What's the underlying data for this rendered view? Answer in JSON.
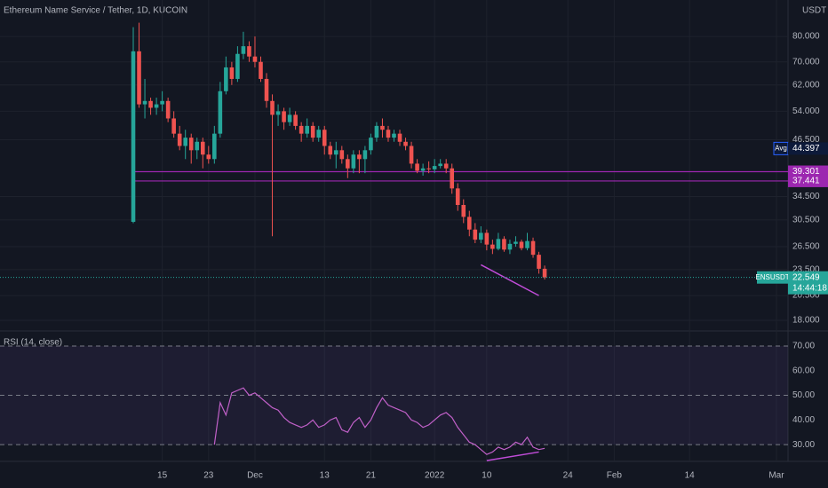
{
  "chart_data": [
    {
      "type": "candlestick",
      "title": "Ethereum Name Service / Tether, 1D, KUCOIN",
      "currency": "USDT",
      "symbol": "ENSUSDT",
      "last": 22.549,
      "countdown": "14:44:18",
      "avg": {
        "label": "Avg",
        "value": 44.397
      },
      "levels": [
        {
          "value": 39.301,
          "color": "#9c27b0"
        },
        {
          "value": 37.441,
          "color": "#9c27b0"
        }
      ],
      "trendline": {
        "color": "#c04cd8",
        "x": [
          "2022-01-09",
          "2022-01-19"
        ],
        "values": [
          24.1,
          20.5
        ]
      },
      "log_scale": true,
      "grid": true,
      "up_color": "#26a69a",
      "down_color": "#ef5350",
      "ylim": [
        17.1,
        96.9
      ],
      "yticks": [
        {
          "value": 80,
          "label": "80.000"
        },
        {
          "value": 70,
          "label": "70.000"
        },
        {
          "value": 62,
          "label": "62.000"
        },
        {
          "value": 54,
          "label": "54.000"
        },
        {
          "value": 46.5,
          "label": "46.500"
        },
        {
          "value": 34.5,
          "label": "34.500"
        },
        {
          "value": 30.5,
          "label": "30.500"
        },
        {
          "value": 26.5,
          "label": "26.500"
        },
        {
          "value": 23.5,
          "label": "23.500"
        },
        {
          "value": 20.5,
          "label": "20.500"
        },
        {
          "value": 18,
          "label": "18.000"
        }
      ],
      "xlim": [
        "2021-10-18",
        "2022-03-03"
      ],
      "xticks": [
        {
          "value": "2021-11-15",
          "label": "15"
        },
        {
          "value": "2021-11-23",
          "label": "23"
        },
        {
          "value": "2021-12-01",
          "label": "Dec"
        },
        {
          "value": "2021-12-13",
          "label": "13"
        },
        {
          "value": "2021-12-21",
          "label": "21"
        },
        {
          "value": "2022-01-01",
          "label": "2022"
        },
        {
          "value": "2022-01-10",
          "label": "10"
        },
        {
          "value": "2022-01-24",
          "label": "24"
        },
        {
          "value": "2022-02-01",
          "label": "Feb"
        },
        {
          "value": "2022-02-14",
          "label": "14"
        },
        {
          "value": "2022-03-01",
          "label": "Mar"
        }
      ],
      "x": [
        "2021-11-10",
        "2021-11-11",
        "2021-11-12",
        "2021-11-13",
        "2021-11-14",
        "2021-11-15",
        "2021-11-16",
        "2021-11-17",
        "2021-11-18",
        "2021-11-19",
        "2021-11-20",
        "2021-11-21",
        "2021-11-22",
        "2021-11-23",
        "2021-11-24",
        "2021-11-25",
        "2021-11-26",
        "2021-11-27",
        "2021-11-28",
        "2021-11-29",
        "2021-11-30",
        "2021-12-01",
        "2021-12-02",
        "2021-12-03",
        "2021-12-04",
        "2021-12-05",
        "2021-12-06",
        "2021-12-07",
        "2021-12-08",
        "2021-12-09",
        "2021-12-10",
        "2021-12-11",
        "2021-12-12",
        "2021-12-13",
        "2021-12-14",
        "2021-12-15",
        "2021-12-16",
        "2021-12-17",
        "2021-12-18",
        "2021-12-19",
        "2021-12-20",
        "2021-12-21",
        "2021-12-22",
        "2021-12-23",
        "2021-12-24",
        "2021-12-25",
        "2021-12-26",
        "2021-12-27",
        "2021-12-28",
        "2021-12-29",
        "2021-12-30",
        "2021-12-31",
        "2022-01-01",
        "2022-01-02",
        "2022-01-03",
        "2022-01-04",
        "2022-01-05",
        "2022-01-06",
        "2022-01-07",
        "2022-01-08",
        "2022-01-09",
        "2022-01-10",
        "2022-01-11",
        "2022-01-12",
        "2022-01-13",
        "2022-01-14",
        "2022-01-15",
        "2022-01-16",
        "2022-01-17",
        "2022-01-18",
        "2022-01-19",
        "2022-01-20"
      ],
      "open": [
        30.2,
        74,
        56,
        57,
        55,
        56,
        57,
        52,
        48,
        45,
        47,
        44,
        46,
        43,
        42,
        48,
        60,
        68,
        64,
        73,
        76,
        72,
        70,
        64,
        57,
        53,
        54,
        51,
        53,
        50,
        48,
        50,
        47,
        49,
        45,
        43,
        44,
        42,
        40,
        43,
        42,
        44,
        47,
        50,
        49,
        47,
        48,
        46,
        45,
        41,
        39.5,
        40,
        39.8,
        40.5,
        41,
        40,
        36,
        33,
        31,
        29,
        27.5,
        28.5,
        26.8,
        26.2,
        27.6,
        26.1,
        26.9,
        27.2,
        26.3,
        27.3,
        25.4,
        23.6
      ],
      "high": [
        84,
        86,
        64,
        58,
        58,
        60,
        58,
        54,
        50,
        49,
        48,
        47,
        47,
        45,
        50,
        63,
        72,
        70,
        76,
        82,
        78,
        80,
        72,
        66,
        59,
        56,
        55,
        55,
        54,
        51,
        52,
        51,
        50,
        50,
        46,
        46,
        45,
        43,
        44,
        44,
        45,
        48,
        51,
        52,
        50,
        49,
        49,
        47,
        46,
        42,
        41,
        41.5,
        42,
        42,
        42,
        41,
        37,
        34,
        32,
        30,
        29.5,
        29,
        27.5,
        28.5,
        28,
        27.5,
        28,
        27.5,
        28.5,
        27.8,
        25.8,
        24
      ],
      "low": [
        30,
        55,
        52,
        53,
        53,
        54,
        51,
        47,
        44,
        42,
        41,
        42,
        40,
        41,
        41,
        47,
        59,
        62,
        63,
        71,
        70,
        68,
        63,
        55,
        28,
        50,
        49,
        50,
        49,
        46,
        47,
        46,
        46,
        43,
        42,
        40,
        41,
        38,
        39,
        39,
        39,
        43,
        46,
        47,
        46,
        46,
        45,
        44,
        40,
        39,
        38.5,
        39,
        39,
        40,
        39,
        35,
        32,
        30,
        28,
        27,
        27,
        26,
        25.5,
        26,
        25.8,
        25.5,
        26.5,
        26,
        26,
        25,
        23,
        22.3
      ],
      "close": [
        74,
        56,
        57,
        55,
        56,
        57,
        52,
        48,
        45,
        47,
        44,
        46,
        43,
        42,
        48,
        60,
        68,
        64,
        73,
        76,
        72,
        70,
        64,
        57,
        53,
        54,
        51,
        53,
        50,
        48,
        50,
        47,
        49,
        45,
        43,
        44,
        42,
        40,
        43,
        42,
        44,
        47,
        50,
        49,
        47,
        48,
        46,
        45,
        41,
        39.5,
        40,
        39.8,
        40.5,
        41,
        40,
        36,
        33,
        31,
        29,
        27.5,
        28.5,
        26.8,
        26.2,
        27.6,
        26.1,
        26.9,
        27.2,
        26.3,
        27.3,
        25.4,
        23.6,
        22.549
      ]
    },
    {
      "type": "line",
      "title": "RSI (14, close)",
      "color": "#c060c8",
      "grid": true,
      "ylim": [
        23.2,
        75.4
      ],
      "yticks": [
        {
          "value": 70,
          "label": "70.00"
        },
        {
          "value": 60,
          "label": "60.00"
        },
        {
          "value": 50,
          "label": "50.00"
        },
        {
          "value": 40,
          "label": "40.00"
        },
        {
          "value": 30,
          "label": "30.00"
        }
      ],
      "levels": [
        70,
        50,
        30
      ],
      "trendline": {
        "color": "#c04cd8",
        "x": [
          "2022-01-10",
          "2022-01-19"
        ],
        "values": [
          23.5,
          27
        ]
      },
      "xlim": [
        "2021-10-18",
        "2022-03-03"
      ],
      "x": [
        "2021-11-24",
        "2021-11-25",
        "2021-11-26",
        "2021-11-27",
        "2021-11-28",
        "2021-11-29",
        "2021-11-30",
        "2021-12-01",
        "2021-12-02",
        "2021-12-03",
        "2021-12-04",
        "2021-12-05",
        "2021-12-06",
        "2021-12-07",
        "2021-12-08",
        "2021-12-09",
        "2021-12-10",
        "2021-12-11",
        "2021-12-12",
        "2021-12-13",
        "2021-12-14",
        "2021-12-15",
        "2021-12-16",
        "2021-12-17",
        "2021-12-18",
        "2021-12-19",
        "2021-12-20",
        "2021-12-21",
        "2021-12-22",
        "2021-12-23",
        "2021-12-24",
        "2021-12-25",
        "2021-12-26",
        "2021-12-27",
        "2021-12-28",
        "2021-12-29",
        "2021-12-30",
        "2021-12-31",
        "2022-01-01",
        "2022-01-02",
        "2022-01-03",
        "2022-01-04",
        "2022-01-05",
        "2022-01-06",
        "2022-01-07",
        "2022-01-08",
        "2022-01-09",
        "2022-01-10",
        "2022-01-11",
        "2022-01-12",
        "2022-01-13",
        "2022-01-14",
        "2022-01-15",
        "2022-01-16",
        "2022-01-17",
        "2022-01-18",
        "2022-01-19",
        "2022-01-20"
      ],
      "values": [
        30,
        47,
        42,
        51,
        52,
        53,
        50,
        51,
        49,
        47,
        45,
        44,
        41,
        39,
        38,
        37,
        38,
        40,
        37,
        38,
        40,
        41,
        36,
        35,
        39,
        41,
        37,
        40,
        45,
        49,
        46,
        45,
        44,
        43,
        40,
        39,
        37,
        38,
        40,
        42,
        43,
        41,
        37,
        34,
        31,
        30,
        28,
        26,
        27,
        29,
        28,
        29,
        31,
        30,
        33,
        29,
        28,
        28.5
      ]
    }
  ]
}
